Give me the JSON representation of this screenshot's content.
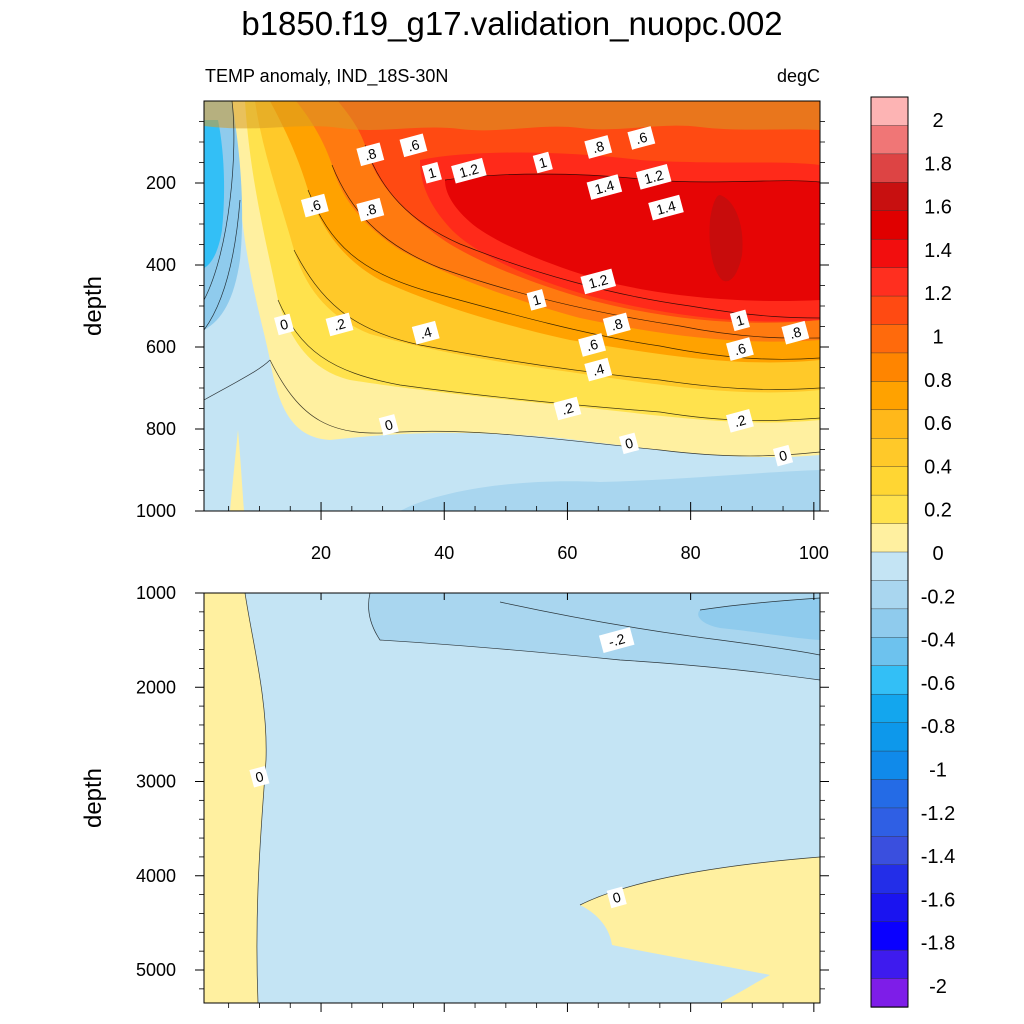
{
  "chart_data": [
    {
      "type": "heatmap",
      "panel": "upper",
      "title": "b1850.f19_g17.validation_nuopc.002",
      "subtitle_left": "TEMP anomaly, IND_18S-30N",
      "subtitle_right": "degC",
      "xlabel": "",
      "ylabel": "depth",
      "xlim": [
        1,
        101
      ],
      "ylim": [
        1000,
        0
      ],
      "x_ticks": [
        20,
        40,
        60,
        80,
        100
      ],
      "x_tick_labels": [
        "20",
        "40",
        "60",
        "80",
        "100"
      ],
      "y_ticks": [
        200,
        400,
        600,
        800,
        1000
      ],
      "y_tick_labels": [
        "200",
        "400",
        "600",
        "800",
        "1000"
      ],
      "contour_labels": [
        {
          "text": ".8",
          "x": 28,
          "y": 130
        },
        {
          "text": ".6",
          "x": 35,
          "y": 108
        },
        {
          "text": "1",
          "x": 38,
          "y": 175
        },
        {
          "text": "1.2",
          "x": 44,
          "y": 170
        },
        {
          "text": "1",
          "x": 56,
          "y": 150
        },
        {
          "text": ".8",
          "x": 65,
          "y": 112
        },
        {
          "text": ".6",
          "x": 72,
          "y": 90
        },
        {
          "text": "1.4",
          "x": 66,
          "y": 210
        },
        {
          "text": "1.2",
          "x": 74,
          "y": 185
        },
        {
          "text": "1.4",
          "x": 76,
          "y": 260
        },
        {
          "text": ".6",
          "x": 19,
          "y": 255
        },
        {
          "text": ".8",
          "x": 28,
          "y": 265
        },
        {
          "text": "1.2",
          "x": 65,
          "y": 440
        },
        {
          "text": "1",
          "x": 55,
          "y": 485
        },
        {
          "text": "0",
          "x": 14,
          "y": 545
        },
        {
          "text": ".2",
          "x": 23,
          "y": 545
        },
        {
          "text": ".4",
          "x": 37,
          "y": 565
        },
        {
          "text": ".8",
          "x": 68,
          "y": 545
        },
        {
          "text": "1",
          "x": 88,
          "y": 535
        },
        {
          "text": ".8",
          "x": 97,
          "y": 565
        },
        {
          "text": ".6",
          "x": 64,
          "y": 595
        },
        {
          "text": ".6",
          "x": 88,
          "y": 605
        },
        {
          "text": ".4",
          "x": 65,
          "y": 655
        },
        {
          "text": ".2",
          "x": 60,
          "y": 750
        },
        {
          "text": ".2",
          "x": 88,
          "y": 780
        },
        {
          "text": "0",
          "x": 31,
          "y": 790
        },
        {
          "text": "0",
          "x": 70,
          "y": 835
        },
        {
          "text": "0",
          "x": 95,
          "y": 865
        }
      ]
    },
    {
      "type": "heatmap",
      "panel": "lower",
      "xlabel": "",
      "ylabel": "depth",
      "xlim": [
        1,
        101
      ],
      "ylim": [
        5350,
        1000
      ],
      "y_ticks": [
        1000,
        2000,
        3000,
        4000,
        5000
      ],
      "y_tick_labels": [
        "1000",
        "2000",
        "3000",
        "4000",
        "5000"
      ],
      "contour_labels": [
        {
          "text": "-.2",
          "x": 68,
          "y": 1500
        },
        {
          "text": "0",
          "x": 10,
          "y": 2950
        },
        {
          "text": "0",
          "x": 68,
          "y": 4230
        }
      ]
    },
    {
      "type": "colorbar",
      "labels": [
        "2",
        "1.8",
        "1.6",
        "1.4",
        "1.2",
        "1",
        "0.8",
        "0.6",
        "0.4",
        "0.2",
        "0",
        "-0.2",
        "-0.4",
        "-0.6",
        "-0.8",
        "-1",
        "-1.2",
        "-1.4",
        "-1.6",
        "-1.8",
        "-2"
      ],
      "colors": [
        "#fdb4b4",
        "#f07676",
        "#dd4444",
        "#c81010",
        "#e00000",
        "#f20e0e",
        "#ff2f1f",
        "#ff4a12",
        "#ff6a0c",
        "#ff8500",
        "#ffa200",
        "#ffb81a",
        "#ffc929",
        "#ffd633",
        "#ffe24d",
        "#fff0a0",
        "#c4e4f4",
        "#a9d6ef",
        "#8fcbed",
        "#6dc2ee",
        "#33bff6",
        "#13a6ee",
        "#0d98eb",
        "#108aea",
        "#246be6",
        "#2f5fe4",
        "#3a4fde",
        "#232ee8",
        "#1a14f0",
        "#0a00ff",
        "#3e1bee",
        "#7e1de8"
      ]
    }
  ]
}
